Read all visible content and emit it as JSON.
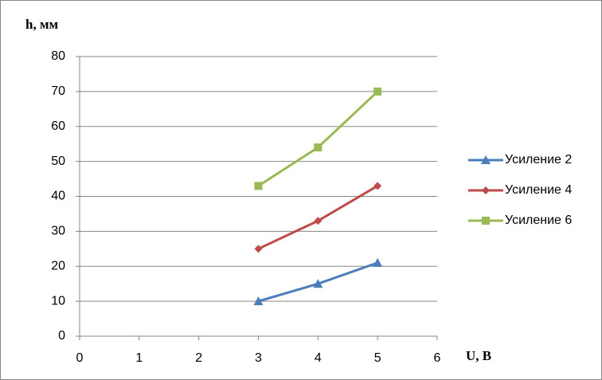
{
  "chart_data": {
    "type": "line",
    "y_label": "h, мм",
    "x_label": "U, В",
    "x": [
      3,
      4,
      5
    ],
    "series": [
      {
        "name": "Усиление 2",
        "color": "#4a7ebb",
        "marker": "triangle",
        "values": [
          10,
          15,
          21
        ]
      },
      {
        "name": "Усиление 4",
        "color": "#be4b48",
        "marker": "diamond",
        "values": [
          25,
          33,
          43
        ]
      },
      {
        "name": "Усиление 6",
        "color": "#98b954",
        "marker": "square",
        "values": [
          43,
          54,
          70
        ]
      }
    ],
    "xlim": [
      0,
      6
    ],
    "xticks": [
      0,
      1,
      2,
      3,
      4,
      5,
      6
    ],
    "ylim": [
      0,
      80
    ],
    "yticks": [
      0,
      10,
      20,
      30,
      40,
      50,
      60,
      70,
      80
    ],
    "grid": true,
    "legend": "right"
  }
}
